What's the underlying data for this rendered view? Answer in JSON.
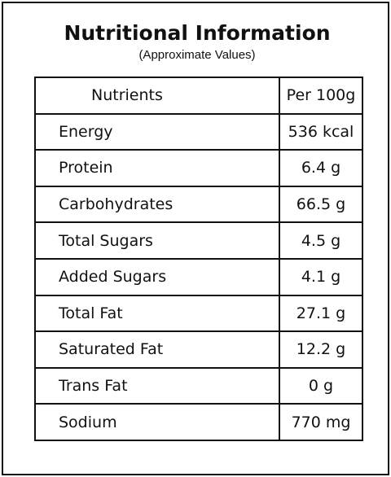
{
  "header": {
    "title": "Nutritional Information",
    "subtitle": "(Approximate Values)"
  },
  "table": {
    "columns": [
      "Nutrients",
      "Per 100g"
    ],
    "rows": [
      [
        "Energy",
        "536 kcal"
      ],
      [
        "Protein",
        "6.4 g"
      ],
      [
        "Carbohydrates",
        "66.5 g"
      ],
      [
        "Total Sugars",
        "4.5 g"
      ],
      [
        "Added Sugars",
        "4.1 g"
      ],
      [
        "Total Fat",
        "27.1 g"
      ],
      [
        "Saturated Fat",
        "12.2 g"
      ],
      [
        "Trans Fat",
        "0 g"
      ],
      [
        "Sodium",
        "770 mg"
      ]
    ]
  }
}
